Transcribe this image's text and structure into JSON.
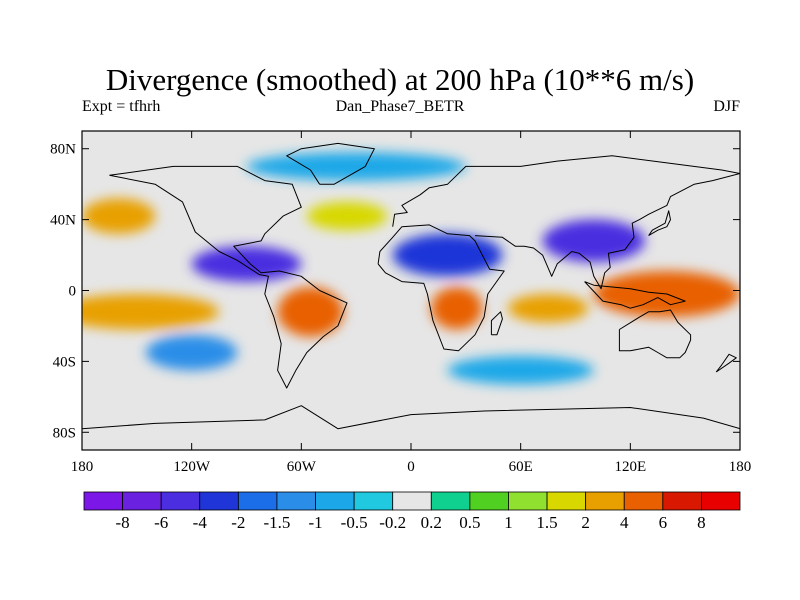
{
  "title": "Divergence (smoothed) at 200 hPa (10**6 m/s)",
  "subtitle_left": "Expt = tfhrh",
  "subtitle_center": "Dan_Phase7_BETR",
  "subtitle_right": "DJF",
  "chart_data": {
    "type": "heatmap",
    "title": "Divergence (smoothed) at 200 hPa (10**6 m/s)",
    "projection": "cylindrical-equidistant",
    "xlim": [
      -180,
      180
    ],
    "ylim": [
      -90,
      90
    ],
    "x_ticks": [
      {
        "value": -180,
        "label": "180"
      },
      {
        "value": -120,
        "label": "120W"
      },
      {
        "value": -60,
        "label": "60W"
      },
      {
        "value": 0,
        "label": "0"
      },
      {
        "value": 60,
        "label": "60E"
      },
      {
        "value": 120,
        "label": "120E"
      },
      {
        "value": 180,
        "label": "180"
      }
    ],
    "y_ticks": [
      {
        "value": 80,
        "label": "80N"
      },
      {
        "value": 40,
        "label": "40N"
      },
      {
        "value": 0,
        "label": "0"
      },
      {
        "value": -40,
        "label": "40S"
      },
      {
        "value": -80,
        "label": "80S"
      }
    ],
    "levels": [
      "-8",
      "-6",
      "-4",
      "-2",
      "-1.5",
      "-1",
      "-0.5",
      "-0.2",
      "0.2",
      "0.5",
      "1",
      "1.5",
      "2",
      "4",
      "6",
      "8"
    ],
    "colors": [
      "#7b18e8",
      "#6a22e0",
      "#4a2ee0",
      "#1f35d8",
      "#1c6ee8",
      "#2a8ee8",
      "#1ca8e8",
      "#20c8e0",
      "#e6e6e6",
      "#10d090",
      "#50d020",
      "#90e030",
      "#d8d800",
      "#e8a000",
      "#e86000",
      "#d81800",
      "#e80000"
    ],
    "regions": [
      {
        "name": "itcz-pacific-divergence",
        "lon": -150,
        "lat": -12,
        "lon_radius": 45,
        "lat_radius": 10,
        "level_index": 13
      },
      {
        "name": "west-pacific-divergence",
        "lon": 140,
        "lat": -2,
        "lon_radius": 40,
        "lat_radius": 13,
        "level_index": 14
      },
      {
        "name": "south-america-divergence",
        "lon": -55,
        "lat": -12,
        "lon_radius": 18,
        "lat_radius": 14,
        "level_index": 14
      },
      {
        "name": "africa-divergence",
        "lon": 25,
        "lat": -10,
        "lon_radius": 14,
        "lat_radius": 12,
        "level_index": 14
      },
      {
        "name": "indian-ocean-divergence",
        "lon": 75,
        "lat": -10,
        "lon_radius": 22,
        "lat_radius": 8,
        "level_index": 13
      },
      {
        "name": "north-pacific-divergence",
        "lon": -160,
        "lat": 42,
        "lon_radius": 20,
        "lat_radius": 10,
        "level_index": 13
      },
      {
        "name": "north-atlantic-divergence",
        "lon": -35,
        "lat": 42,
        "lon_radius": 22,
        "lat_radius": 8,
        "level_index": 12
      },
      {
        "name": "subtropical-convergence",
        "lon": -90,
        "lat": 15,
        "lon_radius": 30,
        "lat_radius": 10,
        "level_index": 2
      },
      {
        "name": "sahara-convergence",
        "lon": 20,
        "lat": 20,
        "lon_radius": 30,
        "lat_radius": 12,
        "level_index": 3
      },
      {
        "name": "asia-convergence",
        "lon": 100,
        "lat": 28,
        "lon_radius": 28,
        "lat_radius": 12,
        "level_index": 2
      },
      {
        "name": "south-pacific-convergence",
        "lon": -120,
        "lat": -35,
        "lon_radius": 25,
        "lat_radius": 10,
        "level_index": 5
      },
      {
        "name": "southern-ocean-convergence",
        "lon": 60,
        "lat": -45,
        "lon_radius": 40,
        "lat_radius": 8,
        "level_index": 6
      },
      {
        "name": "arctic-convergence",
        "lon": -30,
        "lat": 70,
        "lon_radius": 60,
        "lat_radius": 8,
        "level_index": 6
      }
    ]
  }
}
